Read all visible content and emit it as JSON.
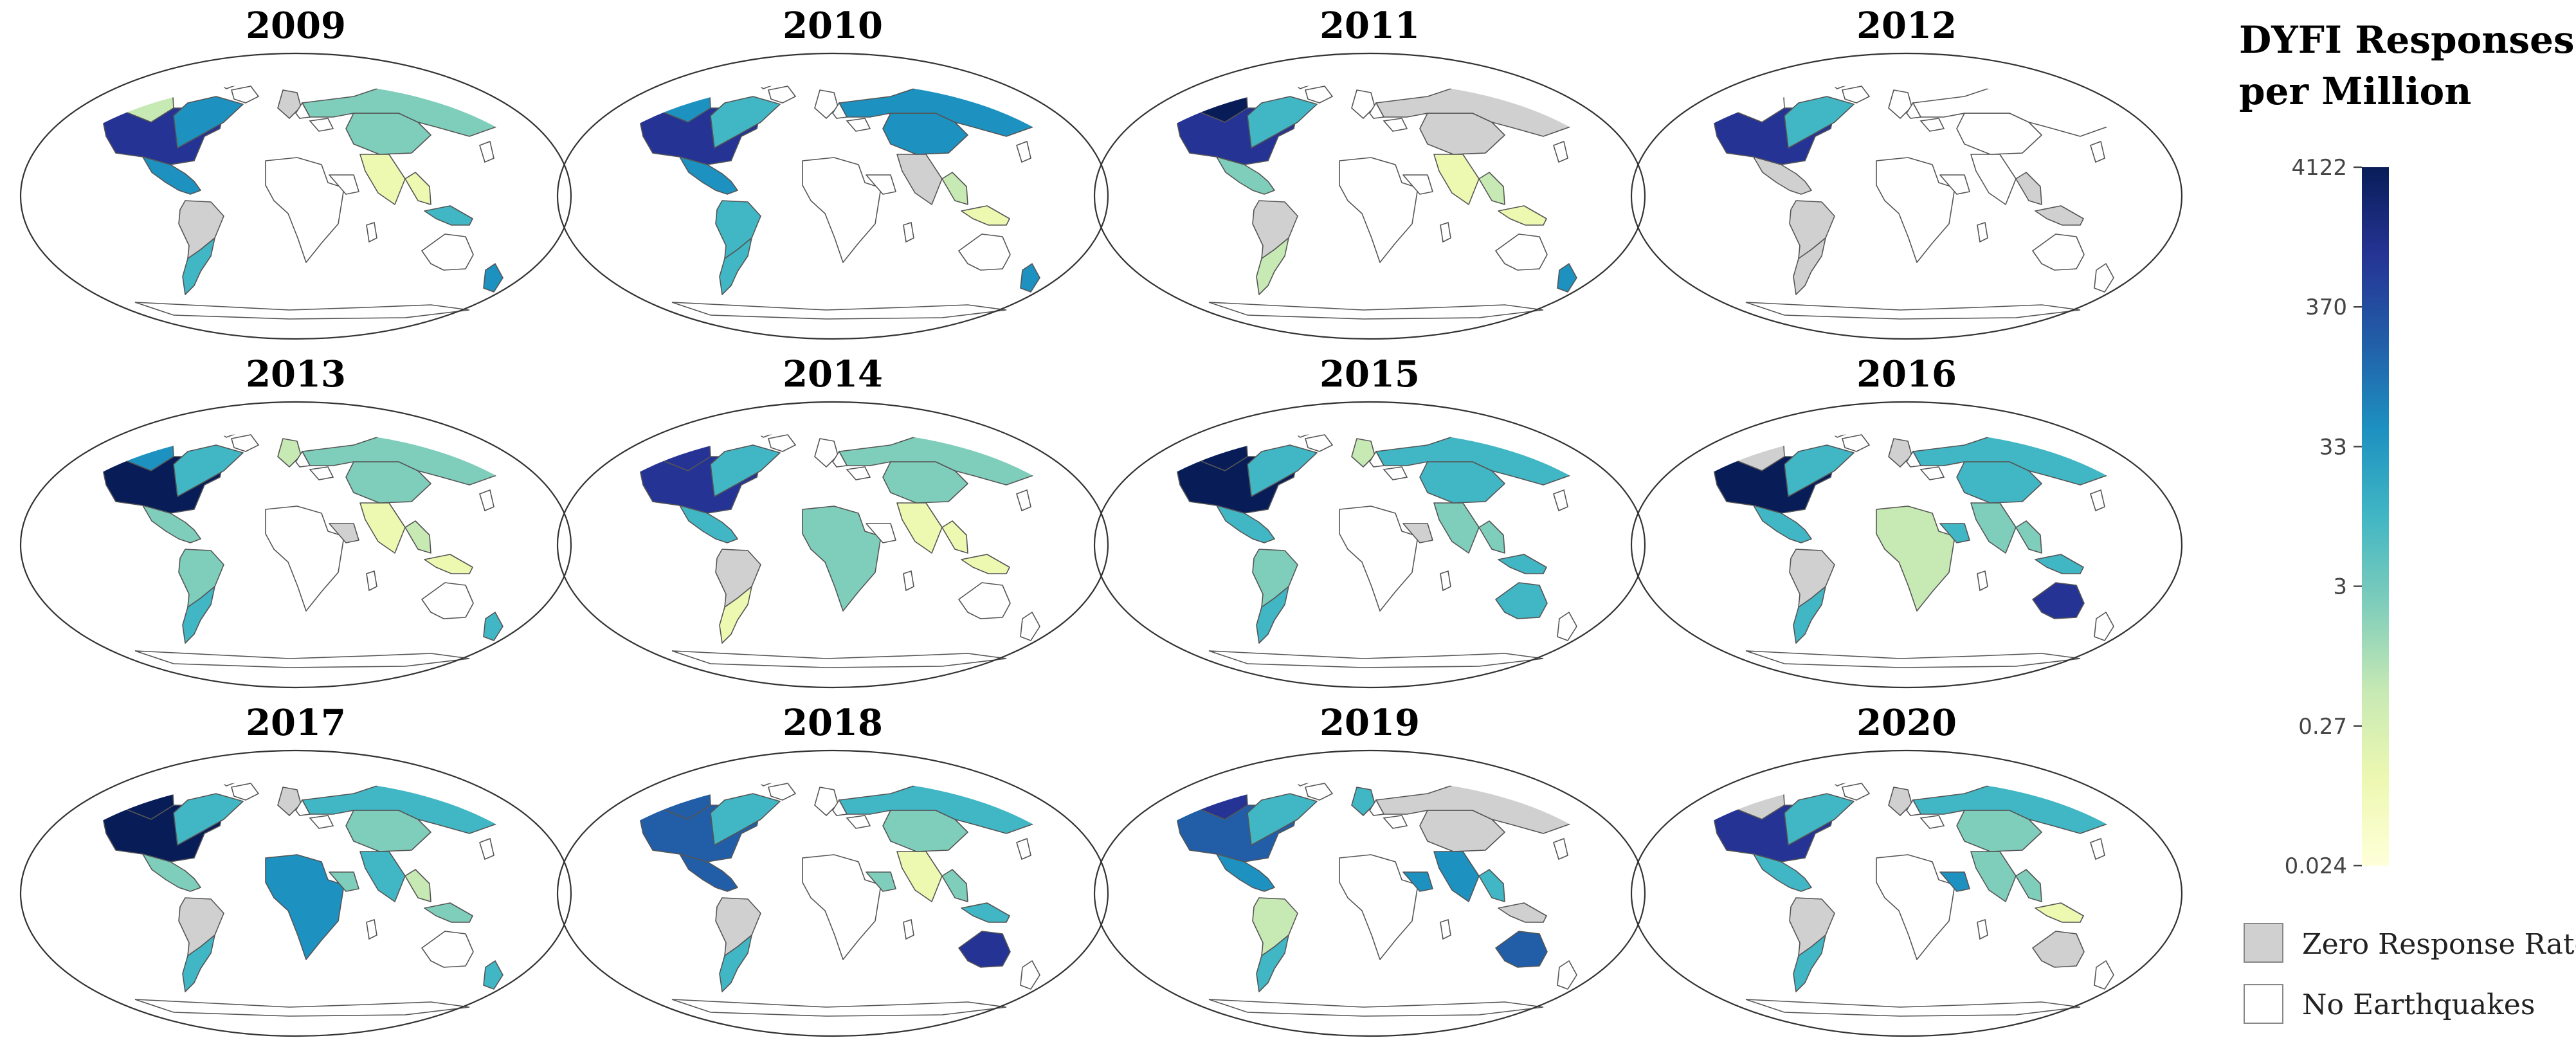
{
  "panels": [
    {
      "year": "2009"
    },
    {
      "year": "2010"
    },
    {
      "year": "2011"
    },
    {
      "year": "2012"
    },
    {
      "year": "2013"
    },
    {
      "year": "2014"
    },
    {
      "year": "2015"
    },
    {
      "year": "2016"
    },
    {
      "year": "2017"
    },
    {
      "year": "2018"
    },
    {
      "year": "2019"
    },
    {
      "year": "2020"
    }
  ],
  "legend": {
    "title_line1": "DYFI Responses",
    "title_line2": "per Million",
    "ticks": [
      "4122",
      "370",
      "33",
      "3",
      "0.27",
      "0.024"
    ],
    "colormap": [
      "#081d58",
      "#253494",
      "#225ea8",
      "#1d91c0",
      "#41b6c4",
      "#7fcdbb",
      "#c7e9b4",
      "#edf8b1",
      "#ffffd9"
    ],
    "zero_label": "Zero Response Rate",
    "zero_color": "#d0d0d0",
    "none_label": "No Earthquakes",
    "none_color": "#ffffff"
  },
  "colors": {
    "outline": "#555555"
  },
  "regions": [
    {
      "2009": "#c7e9b4",
      "2010": "#1d91c0",
      "2011": "#081d58",
      "2012": "#ffffff",
      "2013": "#1d91c0",
      "2014": "#253494",
      "2015": "#081d58",
      "2016": "#d0d0d0",
      "2017": "#081d58",
      "2018": "#225ea8",
      "2019": "#253494",
      "2020": "#d0d0d0"
    },
    {
      "2009": "#253494",
      "2010": "#253494",
      "2011": "#253494",
      "2012": "#253494",
      "2013": "#081d58",
      "2014": "#253494",
      "2015": "#081d58",
      "2016": "#081d58",
      "2017": "#081d58",
      "2018": "#225ea8",
      "2019": "#225ea8",
      "2020": "#253494"
    },
    {
      "2009": "#1d91c0",
      "2010": "#1d91c0",
      "2011": "#7fcdbb",
      "2012": "#d0d0d0",
      "2013": "#7fcdbb",
      "2014": "#41b6c4",
      "2015": "#41b6c4",
      "2016": "#41b6c4",
      "2017": "#7fcdbb",
      "2018": "#225ea8",
      "2019": "#1d91c0",
      "2020": "#41b6c4"
    },
    {
      "2009": "#d0d0d0",
      "2010": "#41b6c4",
      "2011": "#d0d0d0",
      "2012": "#d0d0d0",
      "2013": "#7fcdbb",
      "2014": "#d0d0d0",
      "2015": "#7fcdbb",
      "2016": "#d0d0d0",
      "2017": "#d0d0d0",
      "2018": "#d0d0d0",
      "2019": "#c7e9b4",
      "2020": "#d0d0d0"
    },
    {
      "2009": "#41b6c4",
      "2010": "#41b6c4",
      "2011": "#c7e9b4",
      "2012": "#d0d0d0",
      "2013": "#41b6c4",
      "2014": "#edf8b1",
      "2015": "#41b6c4",
      "2016": "#41b6c4",
      "2017": "#41b6c4",
      "2018": "#41b6c4",
      "2019": "#41b6c4",
      "2020": "#41b6c4"
    },
    {
      "2009": "#1d91c0",
      "2010": "#41b6c4",
      "2011": "#41b6c4",
      "2012": "#41b6c4",
      "2013": "#41b6c4",
      "2014": "#41b6c4",
      "2015": "#41b6c4",
      "2016": "#41b6c4",
      "2017": "#41b6c4",
      "2018": "#41b6c4",
      "2019": "#41b6c4",
      "2020": "#41b6c4"
    },
    {
      "2009": "#ffffff",
      "2010": "#ffffff",
      "2011": "#ffffff",
      "2012": "#ffffff",
      "2013": "#ffffff",
      "2014": "#7fcdbb",
      "2015": "#ffffff",
      "2016": "#c7e9b4",
      "2017": "#1d91c0",
      "2018": "#ffffff",
      "2019": "#ffffff",
      "2020": "#ffffff"
    },
    {
      "2009": "#ffffff",
      "2010": "#ffffff",
      "2011": "#ffffff",
      "2012": "#ffffff",
      "2013": "#d0d0d0",
      "2014": "#ffffff",
      "2015": "#d0d0d0",
      "2016": "#41b6c4",
      "2017": "#7fcdbb",
      "2018": "#7fcdbb",
      "2019": "#1d91c0",
      "2020": "#1d91c0"
    },
    {
      "2009": "#d0d0d0",
      "2010": "#ffffff",
      "2011": "#ffffff",
      "2012": "#ffffff",
      "2013": "#c7e9b4",
      "2014": "#ffffff",
      "2015": "#c7e9b4",
      "2016": "#d0d0d0",
      "2017": "#d0d0d0",
      "2018": "#ffffff",
      "2019": "#41b6c4",
      "2020": "#d0d0d0"
    },
    {
      "2009": "#edf8b1",
      "2010": "#d0d0d0",
      "2011": "#edf8b1",
      "2012": "#ffffff",
      "2013": "#edf8b1",
      "2014": "#edf8b1",
      "2015": "#7fcdbb",
      "2016": "#7fcdbb",
      "2017": "#41b6c4",
      "2018": "#edf8b1",
      "2019": "#1d91c0",
      "2020": "#7fcdbb"
    },
    {
      "2009": "#7fcdbb",
      "2010": "#1d91c0",
      "2011": "#d0d0d0",
      "2012": "#ffffff",
      "2013": "#7fcdbb",
      "2014": "#7fcdbb",
      "2015": "#41b6c4",
      "2016": "#41b6c4",
      "2017": "#7fcdbb",
      "2018": "#7fcdbb",
      "2019": "#d0d0d0",
      "2020": "#7fcdbb"
    },
    {
      "2009": "#7fcdbb",
      "2010": "#1d91c0",
      "2011": "#d0d0d0",
      "2012": "#ffffff",
      "2013": "#7fcdbb",
      "2014": "#7fcdbb",
      "2015": "#41b6c4",
      "2016": "#41b6c4",
      "2017": "#41b6c4",
      "2018": "#41b6c4",
      "2019": "#d0d0d0",
      "2020": "#41b6c4"
    },
    {
      "2009": "#edf8b1",
      "2010": "#c7e9b4",
      "2011": "#c7e9b4",
      "2012": "#d0d0d0",
      "2013": "#c7e9b4",
      "2014": "#edf8b1",
      "2015": "#7fcdbb",
      "2016": "#7fcdbb",
      "2017": "#c7e9b4",
      "2018": "#7fcdbb",
      "2019": "#41b6c4",
      "2020": "#7fcdbb"
    },
    {
      "2009": "#41b6c4",
      "2010": "#edf8b1",
      "2011": "#edf8b1",
      "2012": "#d0d0d0",
      "2013": "#edf8b1",
      "2014": "#edf8b1",
      "2015": "#41b6c4",
      "2016": "#41b6c4",
      "2017": "#7fcdbb",
      "2018": "#41b6c4",
      "2019": "#d0d0d0",
      "2020": "#edf8b1"
    },
    {
      "2009": "#ffffff",
      "2010": "#ffffff",
      "2011": "#ffffff",
      "2012": "#ffffff",
      "2013": "#ffffff",
      "2014": "#ffffff",
      "2015": "#41b6c4",
      "2016": "#253494",
      "2017": "#ffffff",
      "2018": "#253494",
      "2019": "#225ea8",
      "2020": "#d0d0d0"
    },
    {
      "2009": "#1d91c0",
      "2010": "#1d91c0",
      "2011": "#1d91c0",
      "2012": "#ffffff",
      "2013": "#41b6c4",
      "2014": "#ffffff",
      "2015": "#ffffff",
      "2016": "#ffffff",
      "2017": "#41b6c4",
      "2018": "#ffffff",
      "2019": "#ffffff",
      "2020": "#ffffff"
    }
  ]
}
